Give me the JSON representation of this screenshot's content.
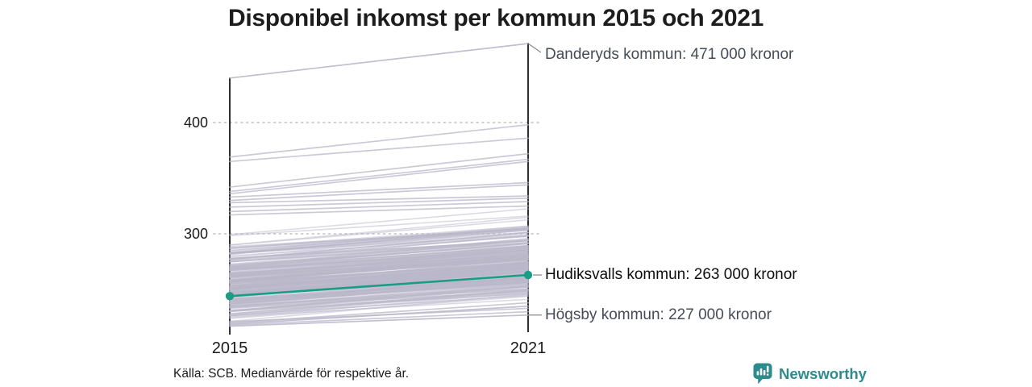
{
  "title": "Disponibel inkomst per kommun 2015 och 2021",
  "chart_data": {
    "type": "line",
    "subtype": "slope-chart",
    "x": [
      2015,
      2021
    ],
    "x_tick_labels": [
      "2015",
      "2021"
    ],
    "y_axis": {
      "ticks": [
        {
          "value": 400,
          "label": "400"
        },
        {
          "value": 300,
          "label": "300"
        }
      ],
      "unit_hint": "tusen kronor"
    },
    "annotated_series": [
      {
        "name": "Danderyds kommun",
        "values": [
          440,
          471
        ],
        "label": "Danderyds kommun: 471 000 kronor",
        "highlight": false
      },
      {
        "name": "Hudiksvalls kommun",
        "values": [
          244,
          263
        ],
        "label": "Hudiksvalls kommun: 263 000 kronor",
        "highlight": true
      },
      {
        "name": "Högsby kommun",
        "values": [
          217,
          227
        ],
        "label": "Högsby kommun: 227 000 kronor",
        "highlight": false
      }
    ],
    "background_series": [
      [
        369,
        398
      ],
      [
        365,
        386
      ],
      [
        342,
        372
      ],
      [
        338,
        367
      ],
      [
        336,
        365
      ],
      [
        333,
        346
      ],
      [
        330,
        344
      ],
      [
        328,
        334
      ],
      [
        324,
        332
      ],
      [
        320,
        329
      ],
      [
        317,
        325
      ],
      [
        219,
        235
      ],
      [
        221,
        233
      ],
      [
        218,
        230
      ],
      [
        220,
        238
      ]
    ],
    "background_band": {
      "description": "approx. 290 Swedish municipalities, unlabeled gray slope lines",
      "count": 245,
      "seed": 42,
      "base": 215,
      "range": 95,
      "skew": 1.3,
      "clip": [
        217,
        313
      ],
      "delta_min": 15,
      "delta_max": 25
    }
  },
  "colors": {
    "highlight": "#1a9c87",
    "background_line": "#bab7ca",
    "axis": "#191919",
    "grid": "#cfcfcf",
    "connector": "#8a8a94",
    "title": "#1d1d1d",
    "annotation": "#454b57",
    "annotation_highlight": "#0d0d0d",
    "logo": "#2e8b8d"
  },
  "footer": {
    "source": "Källa: SCB. Medianvärde för respektive år.",
    "brand": "Newsworthy"
  },
  "icons": {
    "brand": "bar-chart-speech-bubble-icon"
  }
}
